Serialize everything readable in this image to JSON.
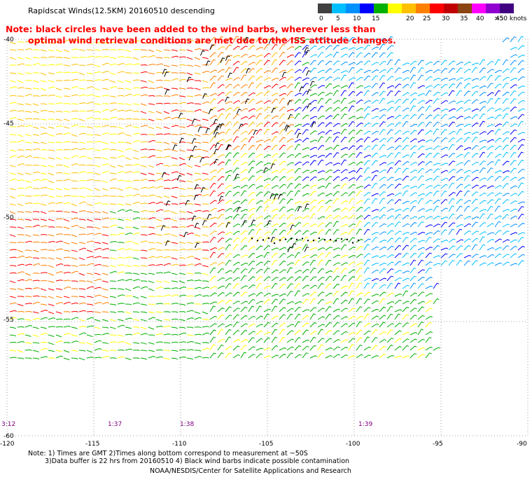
{
  "title": "Rapidscat Winds(12.5KM) 20160510 descending",
  "note_lines": [
    "Note: black circles have been added to the wind barbs, wherever less than",
    "optimal wind retrieval conditions are met due to the ISS attitude changes."
  ],
  "colorbar": {
    "colors": [
      "#404040",
      "#00bfff",
      "#0090ff",
      "#0000ff",
      "#00b000",
      "#ffff00",
      "#ffc000",
      "#ff8000",
      "#ff0000",
      "#c00000",
      "#8b4513",
      "#ff00ff",
      "#9000d0",
      "#400080"
    ],
    "labels": [
      "0",
      "5",
      "10",
      "15",
      "20",
      "25",
      "30",
      "35",
      "40",
      "45",
      ">50 knots"
    ]
  },
  "axes": {
    "lon_labels": [
      "-120",
      "-115",
      "-110",
      "-105",
      "-100",
      "-95",
      "-90"
    ],
    "lat_labels": [
      "-40",
      "-45",
      "-50",
      "-55",
      "-60"
    ]
  },
  "time_labels": [
    "3:12",
    "1:37",
    "1:38",
    "1:39"
  ],
  "bottom_notes": [
    "Note: 1) Times are GMT 2)Times along bottom correspond to measurement at ~50S",
    "3)Data buffer is 22 hrs from 20160510 4) Black wind barbs indicate possible contamination",
    "NOAA/NESDIS/Center for Satellite Applications and Research"
  ]
}
